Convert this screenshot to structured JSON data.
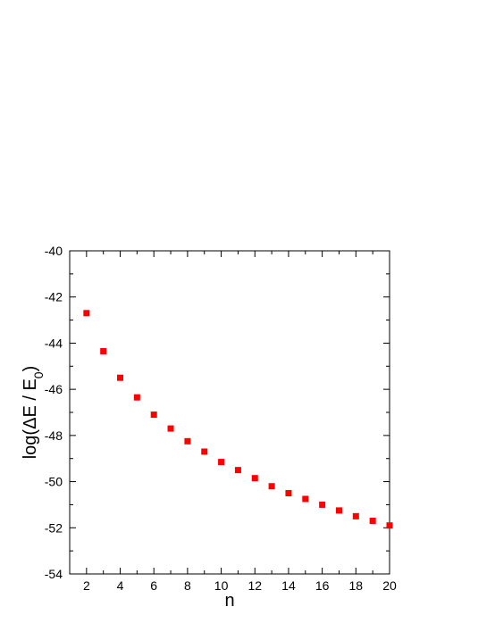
{
  "chart_data": {
    "type": "scatter",
    "title": "",
    "xlabel": "n",
    "ylabel": {
      "prefix": "log(ΔE / E",
      "subscript": "0",
      "suffix": ")"
    },
    "xlim": [
      1,
      20
    ],
    "ylim": [
      -54,
      -40
    ],
    "x_ticks": [
      2,
      4,
      6,
      8,
      10,
      12,
      14,
      16,
      18,
      20
    ],
    "y_ticks": [
      -54,
      -52,
      -50,
      -48,
      -46,
      -44,
      -42,
      -40
    ],
    "grid": false,
    "legend": "none",
    "marker": "square",
    "marker_color": "#ff0000",
    "x": [
      2,
      3,
      4,
      5,
      6,
      7,
      8,
      9,
      10,
      11,
      12,
      13,
      14,
      15,
      16,
      17,
      18,
      19,
      20
    ],
    "y": [
      -42.7,
      -44.35,
      -45.5,
      -46.35,
      -47.1,
      -47.7,
      -48.25,
      -48.7,
      -49.15,
      -49.5,
      -49.85,
      -50.2,
      -50.5,
      -50.75,
      -51.0,
      -51.25,
      -51.5,
      -51.7,
      -51.9
    ]
  }
}
